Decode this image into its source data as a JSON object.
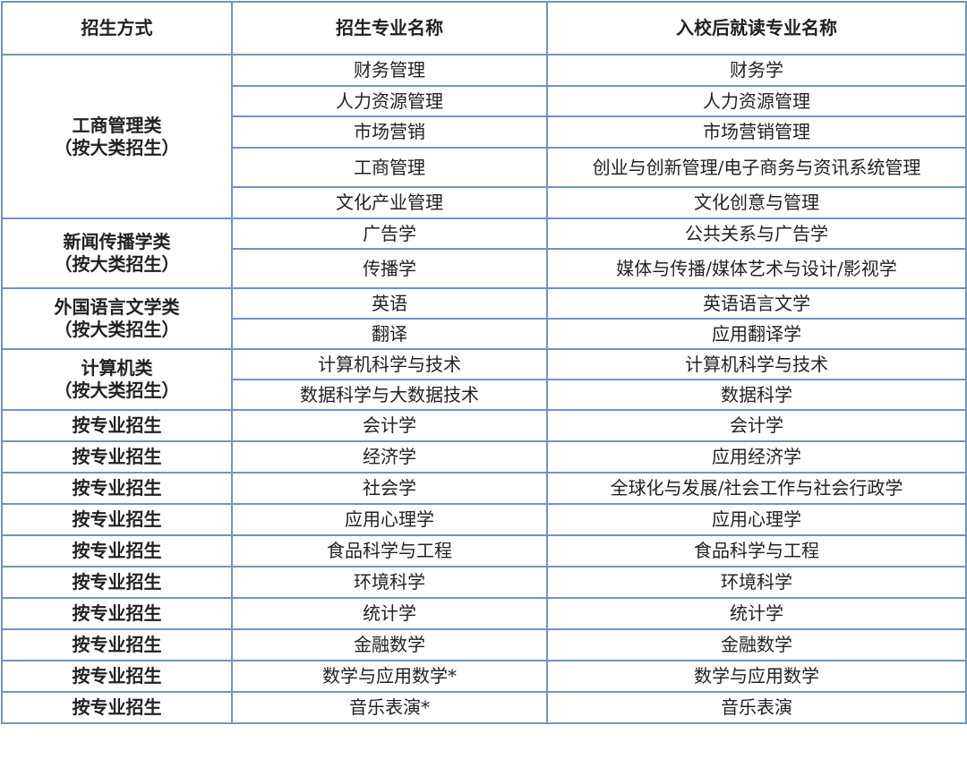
{
  "headers": [
    "招生方式",
    "招生专业名称",
    "入校后就读专业名称"
  ],
  "groups": [
    {
      "mode": [
        "工商管理类",
        "（按大类招生）"
      ],
      "rows": [
        [
          "财务管理",
          "财务学"
        ],
        [
          "人力资源管理",
          "人力资源管理"
        ],
        [
          "市场营销",
          "市场营销管理"
        ],
        [
          "工商管理",
          "创业与创新管理/电子商务与资讯系统管理"
        ],
        [
          "文化产业管理",
          "文化创意与管理"
        ]
      ]
    },
    {
      "mode": [
        "新闻传播学类",
        "（按大类招生）"
      ],
      "rows": [
        [
          "广告学",
          "公共关系与广告学"
        ],
        [
          "传播学",
          "媒体与传播/媒体艺术与设计/影视学"
        ]
      ]
    },
    {
      "mode": [
        "外国语言文学类",
        "（按大类招生）"
      ],
      "rows": [
        [
          "英语",
          "英语语言文学"
        ],
        [
          "翻译",
          "应用翻译学"
        ]
      ]
    },
    {
      "mode": [
        "计算机类",
        "（按大类招生）"
      ],
      "rows": [
        [
          "计算机科学与技术",
          "计算机科学与技术"
        ],
        [
          "数据科学与大数据技术",
          "数据科学"
        ]
      ]
    }
  ],
  "single_rows": [
    [
      "按专业招生",
      "会计学",
      "会计学"
    ],
    [
      "按专业招生",
      "经济学",
      "应用经济学"
    ],
    [
      "按专业招生",
      "社会学",
      "全球化与发展/社会工作与社会行政学"
    ],
    [
      "按专业招生",
      "应用心理学",
      "应用心理学"
    ],
    [
      "按专业招生",
      "食品科学与工程",
      "食品科学与工程"
    ],
    [
      "按专业招生",
      "环境科学",
      "环境科学"
    ],
    [
      "按专业招生",
      "统计学",
      "统计学"
    ],
    [
      "按专业招生",
      "金融数学",
      "金融数学"
    ],
    [
      "按专业招生",
      "数学与应用数学*",
      "数学与应用数学"
    ],
    [
      "按专业招生",
      "音乐表演*",
      "音乐表演"
    ]
  ],
  "colors": {
    "border": "#7393c0",
    "text": "#222222"
  }
}
